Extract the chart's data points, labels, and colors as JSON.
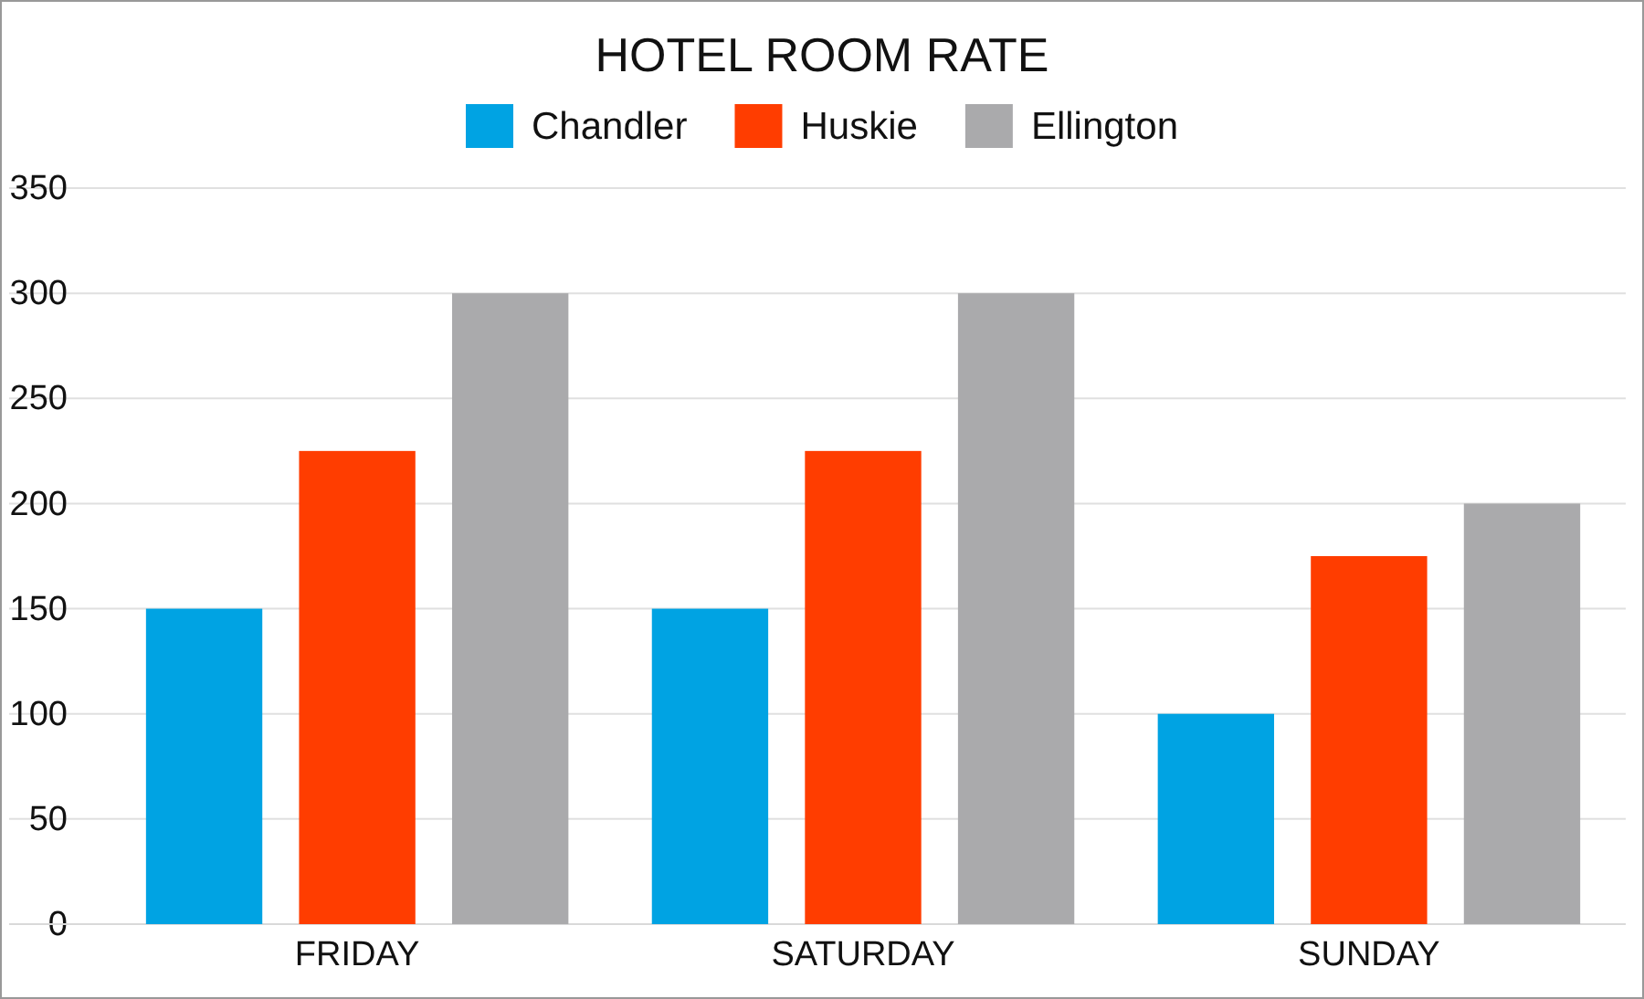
{
  "chart_data": {
    "type": "bar",
    "title": "HOTEL ROOM RATE",
    "categories": [
      "FRIDAY",
      "SATURDAY",
      "SUNDAY"
    ],
    "series": [
      {
        "name": "Chandler",
        "color": "#00a3e3",
        "values": [
          150,
          150,
          100
        ]
      },
      {
        "name": "Huskie",
        "color": "#ff3d00",
        "values": [
          225,
          225,
          175
        ]
      },
      {
        "name": "Ellington",
        "color": "#aaaaac",
        "values": [
          300,
          300,
          200
        ]
      }
    ],
    "ylim": [
      0,
      350
    ],
    "yticks": [
      0,
      50,
      100,
      150,
      200,
      250,
      300,
      350
    ],
    "grid": "y",
    "legend": "top"
  }
}
